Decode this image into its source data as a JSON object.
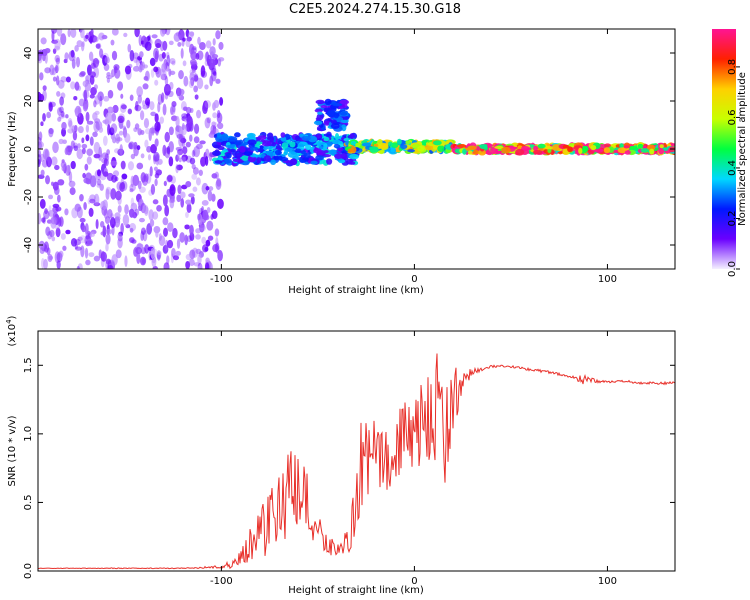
{
  "title": "C2E5.2024.274.15.30.G18",
  "chart_data": [
    {
      "type": "heatmap",
      "xlabel": "Height of straight line (km)",
      "ylabel": "Frequency (Hz)",
      "xlim": [
        -195,
        135
      ],
      "ylim": [
        -50,
        50
      ],
      "xticks": [
        -100,
        0,
        100
      ],
      "yticks": [
        -40,
        -20,
        0,
        20,
        40
      ],
      "xtick_labels": [
        "-100",
        "0",
        "100"
      ],
      "ytick_labels": [
        "-40",
        "-20",
        "0",
        "20",
        "40"
      ],
      "colorbar": {
        "label": "Normalized spectral amplitude",
        "range": [
          0,
          0.95
        ],
        "ticks": [
          0.0,
          0.2,
          0.4,
          0.6,
          0.8
        ],
        "tick_labels": [
          "0.0",
          "0.2",
          "0.4",
          "0.6",
          "0.8"
        ],
        "colors": [
          "#f4f0ff",
          "#6a00ff",
          "#0018ff",
          "#00d8ff",
          "#00ff40",
          "#c8ff00",
          "#ffd000",
          "#ff2000",
          "#ff1493"
        ]
      },
      "regions": [
        {
          "x_from": -195,
          "x_to": -100,
          "y_center": 0,
          "y_spread": 50,
          "level": 0.1
        },
        {
          "x_from": -103,
          "x_to": -30,
          "y_center": 0,
          "y_spread": 6,
          "level": 0.3
        },
        {
          "x_from": -50,
          "x_to": -35,
          "y_center": 14,
          "y_spread": 6,
          "level": 0.25
        },
        {
          "x_from": -35,
          "x_to": 20,
          "y_center": 1,
          "y_spread": 2,
          "level": 0.6
        },
        {
          "x_from": 20,
          "x_to": 135,
          "y_center": 0,
          "y_spread": 1.5,
          "level": 0.9
        }
      ]
    },
    {
      "type": "line",
      "xlabel": "Height of straight line (km)",
      "ylabel": "SNR (10 * v/v)",
      "y_multiplier_label": "(x10",
      "y_multiplier_exp": "4",
      "xlim": [
        -195,
        135
      ],
      "ylim": [
        0,
        1.75
      ],
      "xticks": [
        -100,
        0,
        100
      ],
      "yticks": [
        0.0,
        0.5,
        1.0,
        1.5
      ],
      "xtick_labels": [
        "-100",
        "0",
        "100"
      ],
      "ytick_labels": [
        "0.0",
        "0.5",
        "1.0",
        "1.5"
      ],
      "color": "#e8302a",
      "x": [
        -195,
        -150,
        -120,
        -100,
        -95,
        -90,
        -85,
        -80,
        -75,
        -70,
        -65,
        -60,
        -55,
        -50,
        -45,
        -40,
        -35,
        -30,
        -28,
        -25,
        -20,
        -15,
        -10,
        -5,
        0,
        5,
        10,
        13,
        15,
        20,
        25,
        30,
        40,
        50,
        60,
        70,
        80,
        85,
        88,
        90,
        95,
        100,
        110,
        120,
        135
      ],
      "y": [
        0.02,
        0.02,
        0.02,
        0.03,
        0.05,
        0.1,
        0.2,
        0.3,
        0.35,
        0.5,
        0.55,
        0.55,
        0.45,
        0.3,
        0.2,
        0.15,
        0.2,
        0.5,
        0.75,
        0.8,
        0.85,
        0.85,
        0.9,
        0.95,
        1.0,
        1.05,
        1.15,
        1.3,
        0.95,
        1.25,
        1.4,
        1.45,
        1.49,
        1.49,
        1.47,
        1.45,
        1.42,
        1.4,
        1.39,
        1.4,
        1.38,
        1.38,
        1.38,
        1.37,
        1.37
      ],
      "amplitude": [
        0.002,
        0.003,
        0.003,
        0.01,
        0.03,
        0.05,
        0.15,
        0.2,
        0.25,
        0.3,
        0.35,
        0.3,
        0.25,
        0.12,
        0.08,
        0.05,
        0.1,
        0.3,
        0.35,
        0.3,
        0.25,
        0.3,
        0.25,
        0.3,
        0.3,
        0.35,
        0.35,
        0.5,
        0.4,
        0.25,
        0.08,
        0.03,
        0.01,
        0.01,
        0.01,
        0.01,
        0.01,
        0.02,
        0.05,
        0.02,
        0.01,
        0.01,
        0.01,
        0.01,
        0.01
      ]
    }
  ]
}
